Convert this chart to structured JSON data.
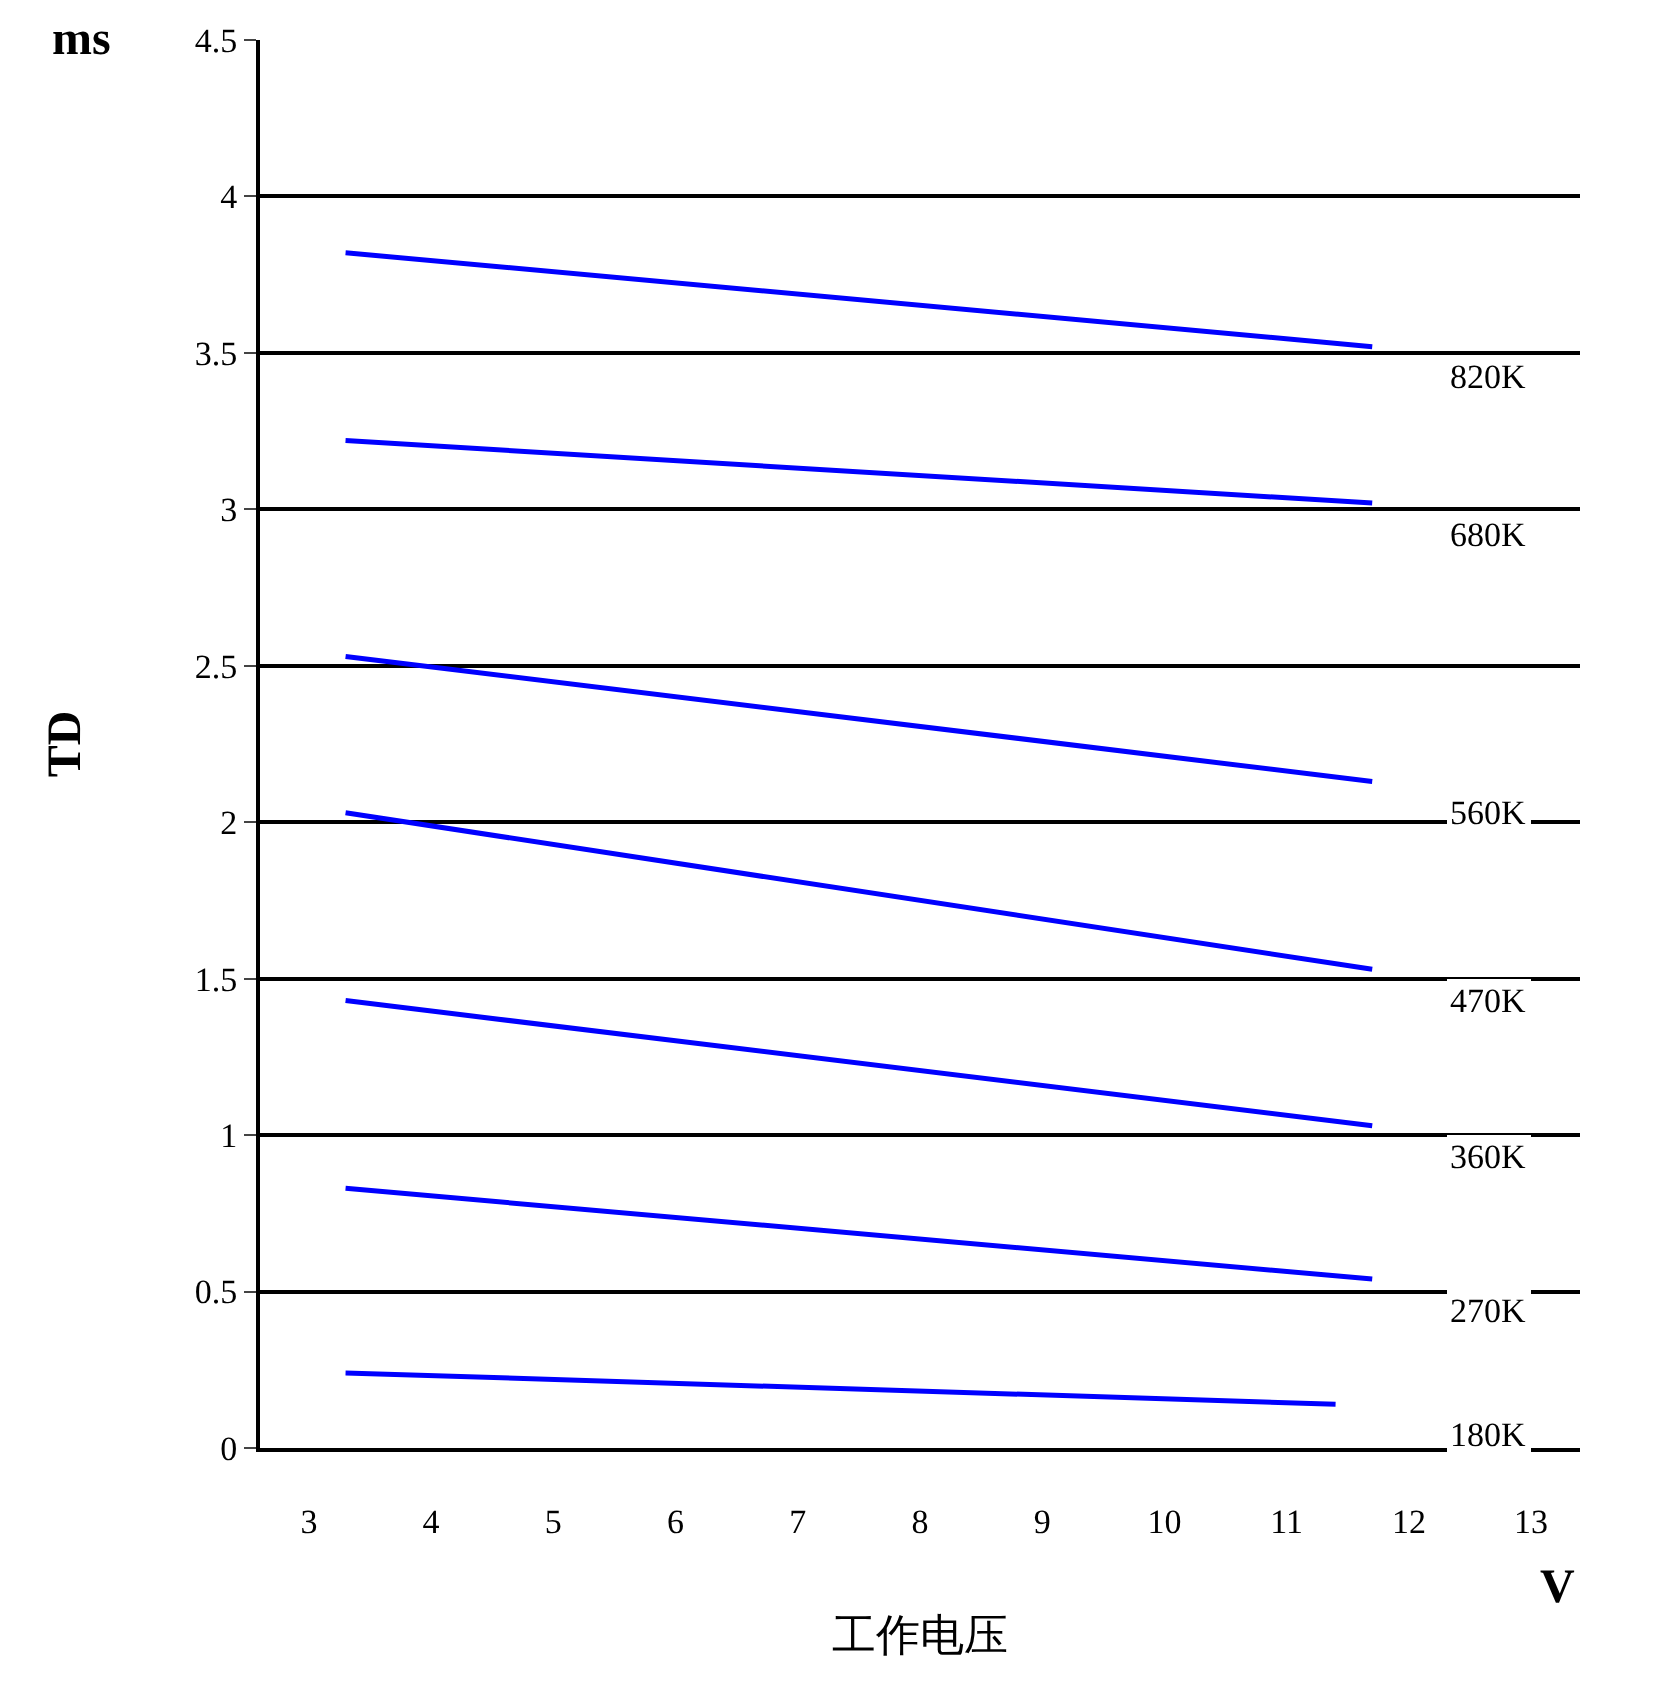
{
  "chart_data": {
    "type": "line",
    "xlabel": "工作电压",
    "ylabel": "TD",
    "annotations": [
      "ms",
      "V"
    ],
    "xlim": [
      2.6,
      13.4
    ],
    "xticks": [
      3,
      4,
      5,
      6,
      7,
      8,
      9,
      10,
      11,
      12,
      13
    ],
    "ylim": [
      0,
      4.5
    ],
    "yticks": [
      0,
      0.5,
      1,
      1.5,
      2,
      2.5,
      3,
      3.5,
      4,
      4.5
    ],
    "grid": "y",
    "legend": false,
    "marker": "none",
    "line_style": "solid",
    "series": [
      {
        "name": "820K",
        "color": "#0000ff",
        "x": [
          3.3,
          11.7
        ],
        "values": [
          3.82,
          3.52
        ]
      },
      {
        "name": "680K",
        "color": "#0000ff",
        "x": [
          3.3,
          11.7
        ],
        "values": [
          3.22,
          3.02
        ]
      },
      {
        "name": "560K",
        "color": "#0000ff",
        "x": [
          3.3,
          11.7
        ],
        "values": [
          2.53,
          2.13
        ]
      },
      {
        "name": "470K",
        "color": "#0000ff",
        "x": [
          3.3,
          11.7
        ],
        "values": [
          2.03,
          1.53
        ]
      },
      {
        "name": "360K",
        "color": "#0000ff",
        "x": [
          3.3,
          11.7
        ],
        "values": [
          1.43,
          1.03
        ]
      },
      {
        "name": "270K",
        "color": "#0000ff",
        "x": [
          3.3,
          11.7
        ],
        "values": [
          0.83,
          0.54
        ]
      },
      {
        "name": "180K",
        "color": "#0000ff",
        "x": [
          3.3,
          11.4
        ],
        "values": [
          0.24,
          0.14
        ]
      }
    ]
  }
}
